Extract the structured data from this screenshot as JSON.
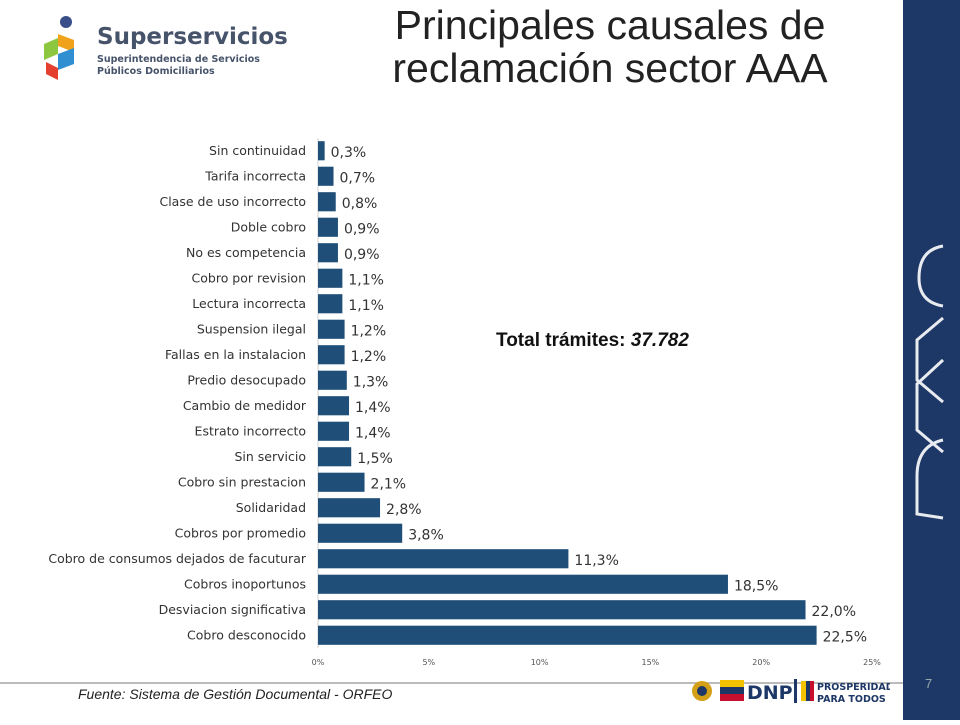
{
  "title": "Principales causales de reclamación sector AAA",
  "logo": {
    "name": "Superservicios",
    "line1": "Superintendencia de Servicios",
    "line2": "Públicos Domiciliarios"
  },
  "total": {
    "label": "Total trámites:",
    "value": "37.782"
  },
  "source": "Fuente: Sistema de Gestión Documental - ORFEO",
  "page_number": "7",
  "footer_logos": {
    "dnp": "DNP",
    "prosperidad_1": "PROSPERIDAD",
    "prosperidad_2": "PARA TODOS"
  },
  "colors": {
    "bar": "#1f4e79",
    "sidebar": "#1d3766"
  },
  "chart_data": {
    "type": "bar",
    "orientation": "horizontal",
    "categories": [
      "Sin continuidad",
      "Tarifa incorrecta",
      "Clase de uso incorrecto",
      "Doble cobro",
      "No es competencia",
      "Cobro por revision",
      "Lectura incorrecta",
      "Suspension ilegal",
      "Fallas en la instalacion",
      "Predio desocupado",
      "Cambio de medidor",
      "Estrato incorrecto",
      "Sin servicio",
      "Cobro sin prestacion",
      "Solidaridad",
      "Cobros por promedio",
      "Cobro de consumos dejados de facuturar",
      "Cobros inoportunos",
      "Desviacion significativa",
      "Cobro desconocido"
    ],
    "values": [
      0.3,
      0.7,
      0.8,
      0.9,
      0.9,
      1.1,
      1.1,
      1.2,
      1.2,
      1.3,
      1.4,
      1.4,
      1.5,
      2.1,
      2.8,
      3.8,
      11.3,
      18.5,
      22.0,
      22.5
    ],
    "value_labels": [
      "0,3%",
      "0,7%",
      "0,8%",
      "0,9%",
      "0,9%",
      "1,1%",
      "1,1%",
      "1,2%",
      "1,2%",
      "1,3%",
      "1,4%",
      "1,4%",
      "1,5%",
      "2,1%",
      "2,8%",
      "3,8%",
      "11,3%",
      "18,5%",
      "22,0%",
      "22,5%"
    ],
    "xlim": [
      0,
      25
    ],
    "xticks": [
      0,
      5,
      10,
      15,
      20,
      25
    ],
    "xtick_labels": [
      "0%",
      "5%",
      "10%",
      "15%",
      "20%",
      "25%"
    ],
    "grid": false,
    "legend": false
  }
}
